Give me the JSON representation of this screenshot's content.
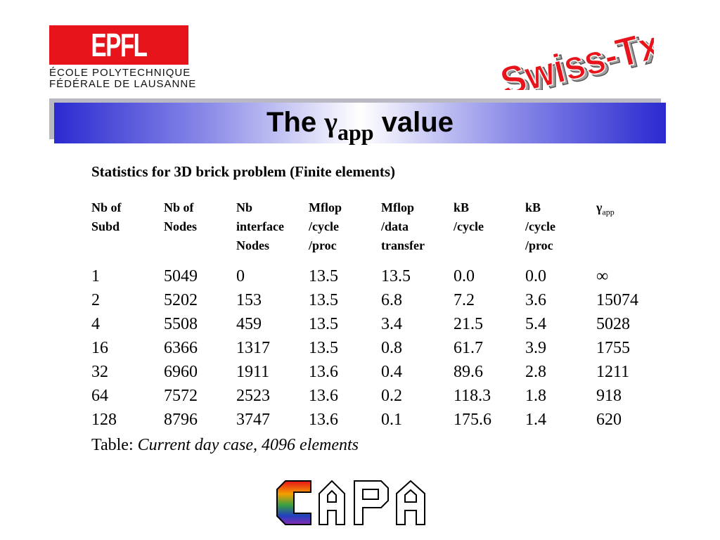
{
  "logos": {
    "epfl_mark": "EPFL",
    "epfl_line1": "ÉCOLE POLYTECHNIQUE",
    "epfl_line2": "FÉDÉRALE DE LAUSANNE",
    "swiss_tx": "Swiss-Tx",
    "capa": "CAPA"
  },
  "title": {
    "prefix": "The",
    "symbol": "γ",
    "subscript": "app",
    "suffix": "value"
  },
  "subtitle": "Statistics for 3D brick problem (Finite elements)",
  "table": {
    "headers": [
      [
        "Nb of",
        "Subd"
      ],
      [
        "Nb of",
        "Nodes"
      ],
      [
        "Nb",
        "interface",
        "Nodes"
      ],
      [
        "Mflop",
        "/cycle",
        "/proc"
      ],
      [
        "Mflop",
        "/data",
        "transfer"
      ],
      [
        "kB",
        "/cycle"
      ],
      [
        "kB",
        "/cycle",
        "/proc"
      ]
    ],
    "gamma_header": {
      "symbol": "γ",
      "subscript": "app"
    },
    "rows": [
      [
        "1",
        "5049",
        "0",
        "13.5",
        "13.5",
        "0.0",
        "0.0",
        "∞"
      ],
      [
        "2",
        "5202",
        "153",
        "13.5",
        "6.8",
        "7.2",
        "3.6",
        "15074"
      ],
      [
        "4",
        "5508",
        "459",
        "13.5",
        "3.4",
        "21.5",
        "5.4",
        "5028"
      ],
      [
        "16",
        "6366",
        "1317",
        "13.5",
        "0.8",
        "61.7",
        "3.9",
        "1755"
      ],
      [
        "32",
        "6960",
        "1911",
        "13.6",
        "0.4",
        "89.6",
        "2.8",
        "1211"
      ],
      [
        "64",
        "7572",
        "2523",
        "13.6",
        "0.2",
        "118.3",
        "1.8",
        "918"
      ],
      [
        "128",
        "8796",
        "3747",
        "13.6",
        "0.1",
        "175.6",
        "1.4",
        "620"
      ]
    ]
  },
  "caption": {
    "label": "Table:",
    "text": "Current day case, 4096 elements"
  },
  "colors": {
    "epfl_red": "#e8141b",
    "banner_blue": "#2a2ad0",
    "swiss_red": "#e8141b"
  }
}
